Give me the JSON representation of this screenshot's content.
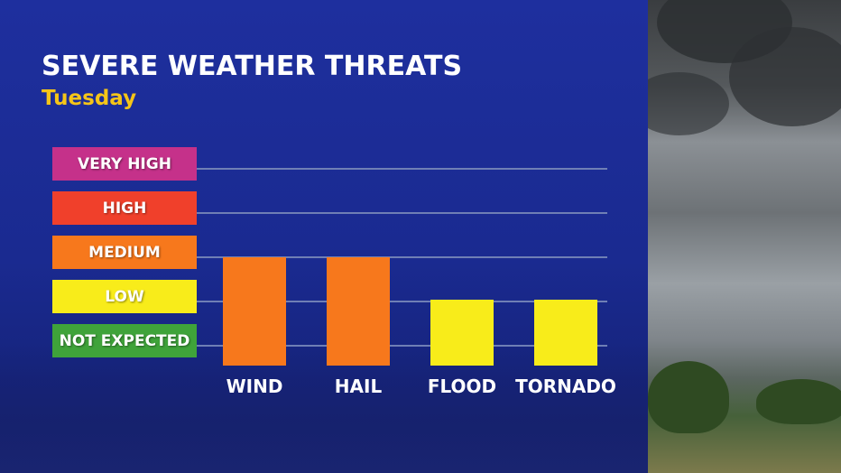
{
  "title": "SEVERE WEATHER THREATS",
  "subtitle": "Tuesday",
  "colors": {
    "panel": "#1e2f9e",
    "title": "#ffffff",
    "subtitle": "#f5c518"
  },
  "levels": [
    {
      "label": "VERY HIGH",
      "color": "#c5318a"
    },
    {
      "label": "HIGH",
      "color": "#f0402b"
    },
    {
      "label": "MEDIUM",
      "color": "#f7781c"
    },
    {
      "label": "LOW",
      "color": "#f8ec1a"
    },
    {
      "label": "NOT EXPECTED",
      "color": "#3fa33a"
    }
  ],
  "chart_data": {
    "type": "bar",
    "categories": [
      "WIND",
      "HAIL",
      "FLOOD",
      "TORNADO"
    ],
    "values": [
      3,
      3,
      2,
      2
    ],
    "value_scale": [
      "NOT EXPECTED",
      "LOW",
      "MEDIUM",
      "HIGH",
      "VERY HIGH"
    ],
    "bar_colors": [
      "#f7781c",
      "#f7781c",
      "#f8ec1a",
      "#f8ec1a"
    ],
    "ylim": [
      0,
      5
    ],
    "grid": true
  }
}
